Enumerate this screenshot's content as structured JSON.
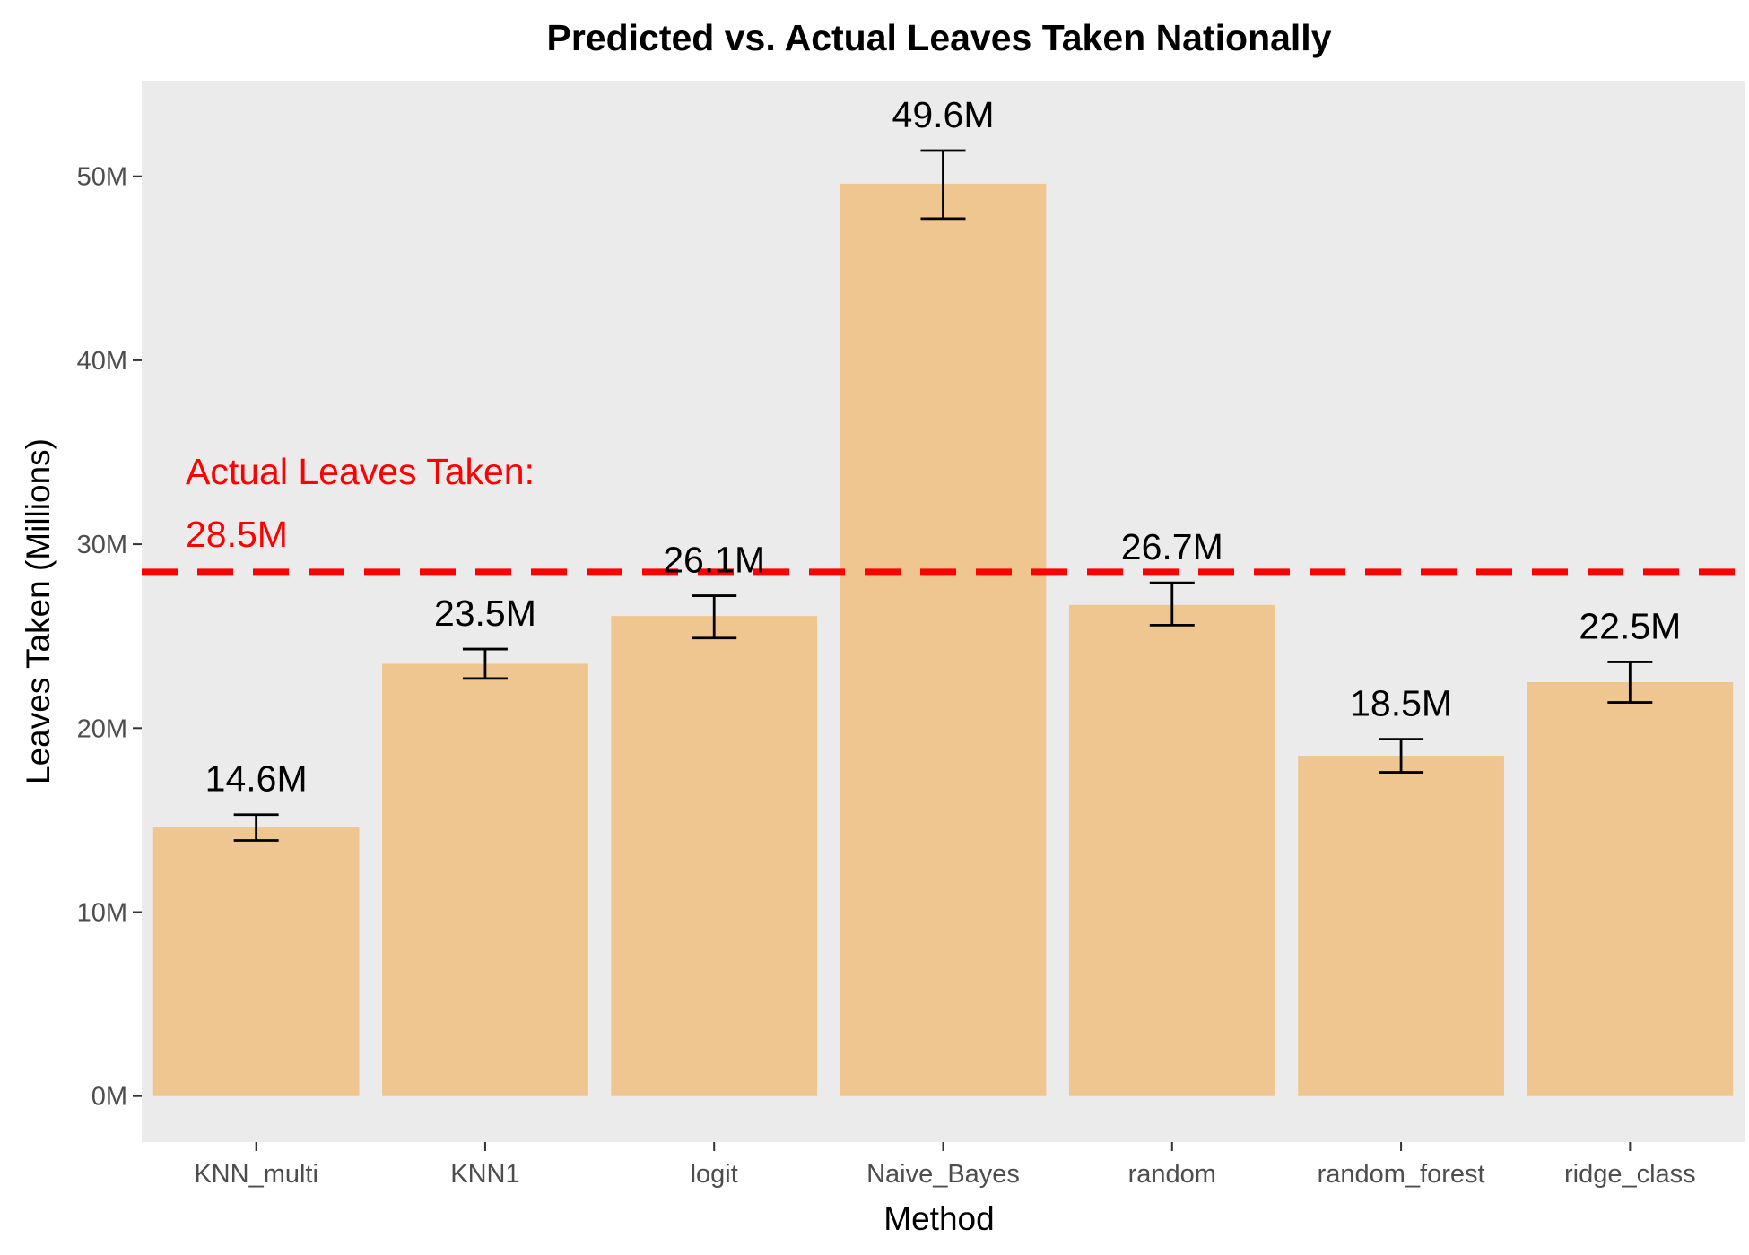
{
  "chart_data": {
    "type": "bar",
    "title": "Predicted vs. Actual Leaves Taken Nationally",
    "xlabel": "Method",
    "ylabel": "Leaves Taken (Millions)",
    "categories": [
      "KNN_multi",
      "KNN1",
      "logit",
      "Naive_Bayes",
      "random",
      "random_forest",
      "ridge_class"
    ],
    "values": [
      14.6,
      23.5,
      26.1,
      49.6,
      26.7,
      18.5,
      22.5
    ],
    "error_low": [
      13.9,
      22.7,
      24.9,
      47.7,
      25.6,
      17.6,
      21.4
    ],
    "error_high": [
      15.3,
      24.3,
      27.2,
      51.4,
      27.9,
      19.4,
      23.6
    ],
    "data_labels": [
      "14.6M",
      "23.5M",
      "26.1M",
      "49.6M",
      "26.7M",
      "18.5M",
      "22.5M"
    ],
    "yticks": [
      0,
      10,
      20,
      30,
      40,
      50
    ],
    "ytick_labels": [
      "0M",
      "10M",
      "20M",
      "30M",
      "40M",
      "50M"
    ],
    "ylim": [
      -2.5,
      55.2
    ],
    "grid": false,
    "colors": {
      "panel": "#ebebeb",
      "bar": "#efc690",
      "errorbar": "#000000",
      "reference": "#ff0000",
      "tick": "#333333"
    },
    "reference_line": {
      "value": 28.5,
      "label_line1": "Actual Leaves Taken:",
      "label_line2": "28.5M"
    }
  }
}
